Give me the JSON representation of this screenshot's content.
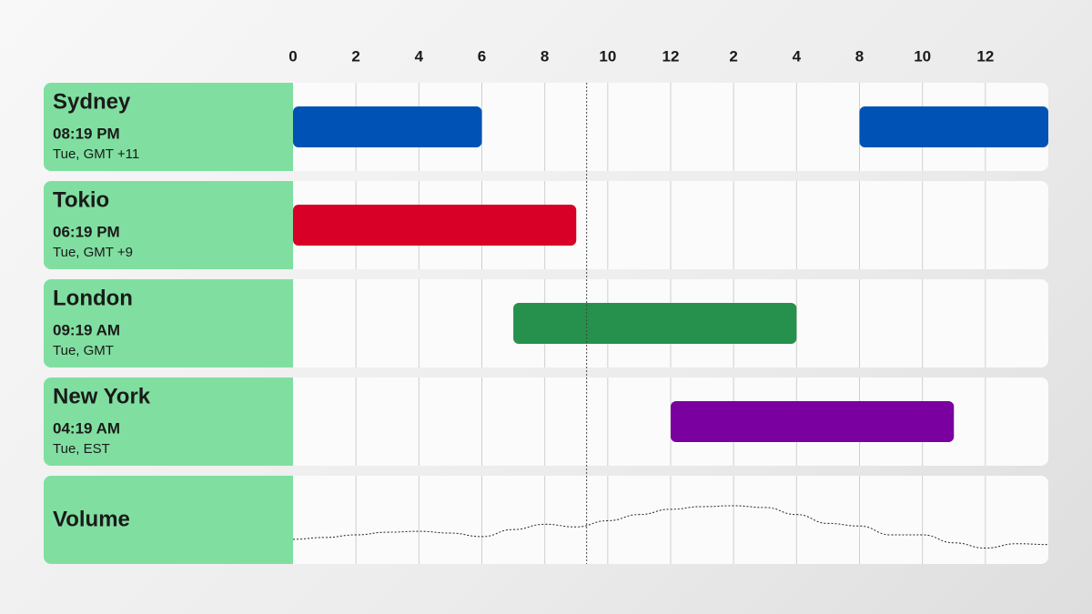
{
  "chart_data": {
    "type": "timeline",
    "xlim": [
      0,
      24
    ],
    "xticks": [
      0,
      2,
      4,
      6,
      8,
      10,
      12,
      {
        "value": 14,
        "label": "2"
      },
      {
        "value": 16,
        "label": "4"
      },
      {
        "value": 18,
        "label": "8"
      },
      {
        "value": 20,
        "label": "10"
      },
      {
        "value": 22,
        "label": "12"
      }
    ],
    "now": 9.33,
    "rows": [
      {
        "name": "Sydney",
        "time": "08:19 PM",
        "detail": "Tue, GMT +11",
        "color": "#0052b4",
        "sessions": [
          [
            0,
            6
          ],
          [
            18,
            24
          ]
        ]
      },
      {
        "name": "Tokio",
        "time": "06:19 PM",
        "detail": "Tue, GMT +9",
        "color": "#d80027",
        "sessions": [
          [
            0,
            9
          ]
        ]
      },
      {
        "name": "London",
        "time": "09:19 AM",
        "detail": "Tue, GMT",
        "color": "#26914c",
        "sessions": [
          [
            7,
            16
          ]
        ]
      },
      {
        "name": "New York",
        "time": "04:19 AM",
        "detail": "Tue, EST",
        "color": "#7a00a0",
        "sessions": [
          [
            12,
            21
          ]
        ]
      }
    ],
    "volume": {
      "name": "Volume",
      "ylim": [
        0,
        100
      ],
      "x": [
        0,
        1,
        2,
        3,
        4,
        5,
        6,
        7,
        8,
        9,
        10,
        11,
        12,
        13,
        14,
        15,
        16,
        17,
        18,
        19,
        20,
        21,
        22,
        23,
        24
      ],
      "values": [
        28,
        30,
        33,
        36,
        37,
        35,
        31,
        39,
        45,
        42,
        49,
        56,
        62,
        65,
        66,
        64,
        56,
        46,
        43,
        33,
        33,
        24,
        18,
        23,
        22
      ]
    }
  }
}
